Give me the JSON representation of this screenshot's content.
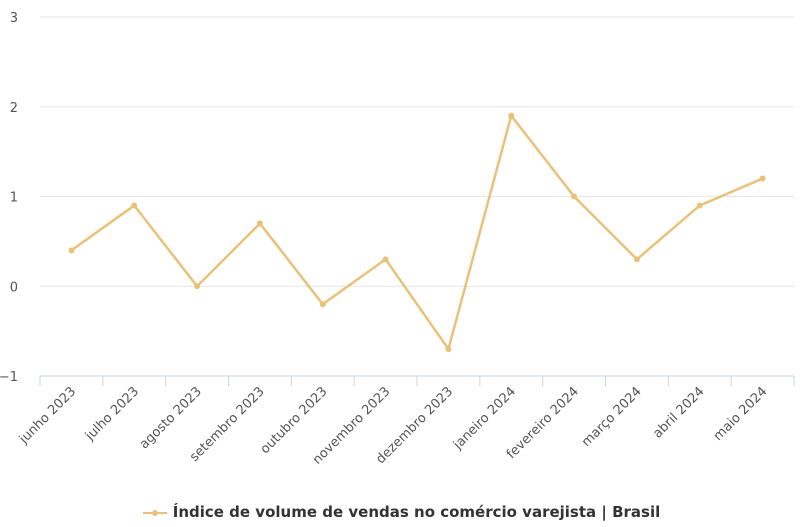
{
  "chart_data": {
    "type": "line",
    "categories": [
      "junho 2023",
      "julho 2023",
      "agosto 2023",
      "setembro 2023",
      "outubro 2023",
      "novembro 2023",
      "dezembro 2023",
      "janeiro 2024",
      "fevereiro 2024",
      "março 2024",
      "abril 2024",
      "maio 2024"
    ],
    "series": [
      {
        "name": "Índice de volume de vendas no comércio varejista | Brasil",
        "values": [
          0.4,
          0.9,
          0.0,
          0.7,
          -0.2,
          0.3,
          -0.7,
          1.9,
          1.0,
          0.3,
          0.9,
          1.2
        ],
        "color": "#e8c27a"
      }
    ],
    "ylim": [
      -1,
      3
    ],
    "yticks": [
      -1,
      0,
      1,
      2,
      3
    ],
    "ytick_labels": [
      "−1",
      "0",
      "1",
      "2",
      "3"
    ],
    "grid": true,
    "legend_position": "bottom-center",
    "xlabel": "",
    "ylabel": "",
    "title": ""
  }
}
